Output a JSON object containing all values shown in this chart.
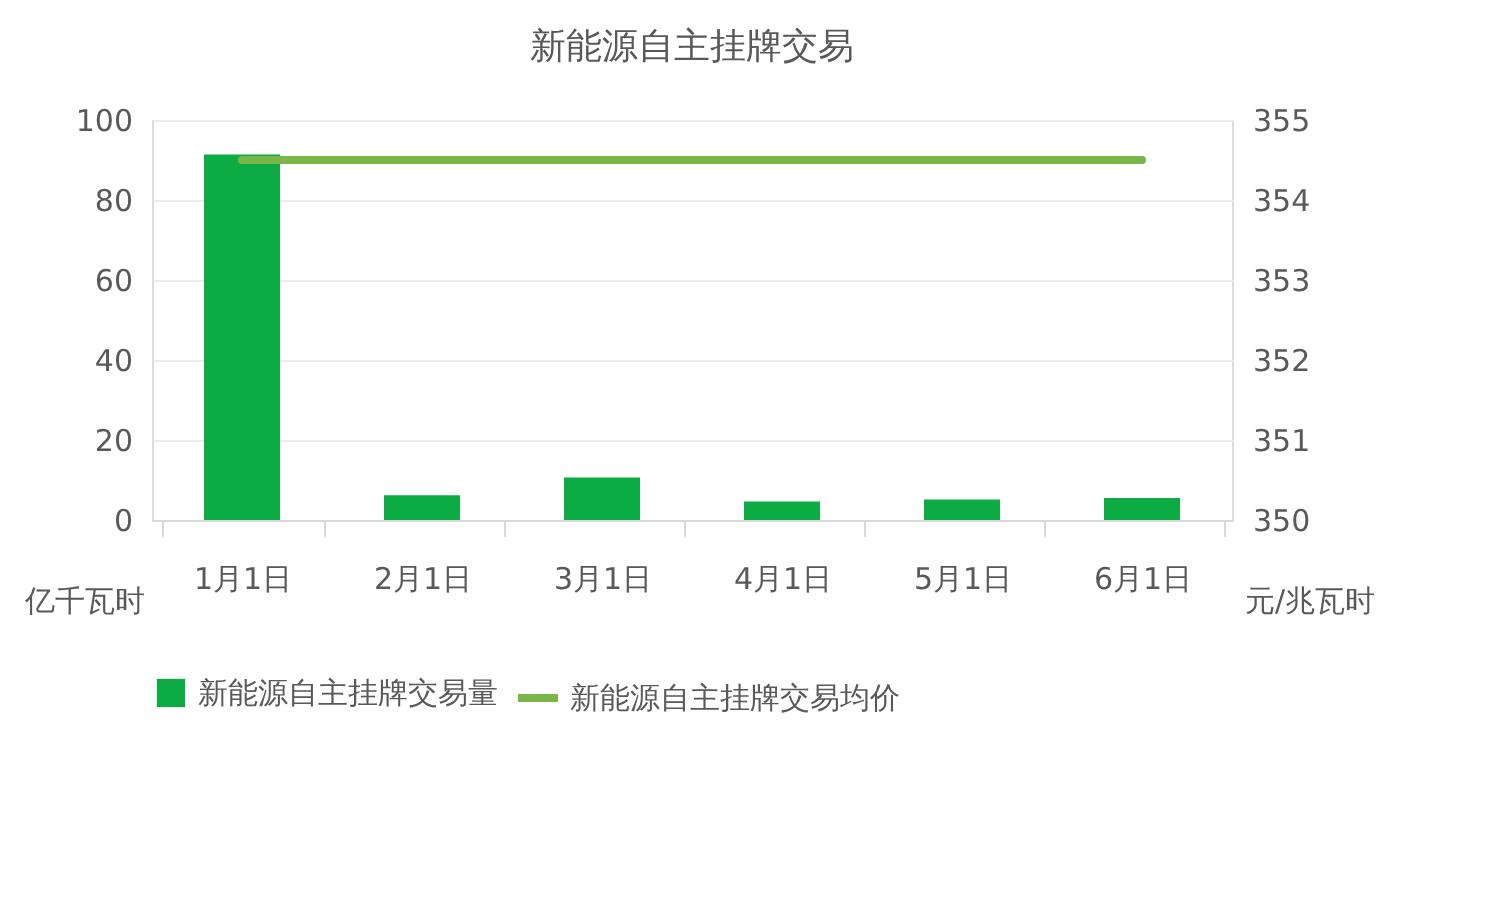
{
  "chart_data": {
    "type": "bar",
    "title": "新能源自主挂牌交易",
    "categories": [
      "1月1日",
      "2月1日",
      "3月1日",
      "4月1日",
      "5月1日",
      "6月1日"
    ],
    "series": [
      {
        "name": "新能源自主挂牌交易量",
        "color": "#0dab44",
        "values": [
          91.4,
          6.2,
          10.6,
          4.6,
          5.1,
          5.5
        ]
      },
      {
        "name": "新能源自主挂牌交易均价",
        "type": "line",
        "axis": "y2",
        "color": "#7ab648",
        "values": [
          354.5,
          354.5,
          354.5,
          354.5,
          354.5,
          354.5
        ]
      }
    ],
    "ylabel": "亿千瓦时",
    "y2label": "元/兆瓦时",
    "ylim": [
      0,
      100
    ],
    "yticks": [
      0,
      20,
      40,
      60,
      80,
      100
    ],
    "y2lim": [
      350,
      355
    ],
    "y2ticks": [
      350,
      351,
      352,
      353,
      354,
      355
    ],
    "grid": "y",
    "legend": "bottom",
    "marker": "none",
    "line_style": "solid"
  }
}
